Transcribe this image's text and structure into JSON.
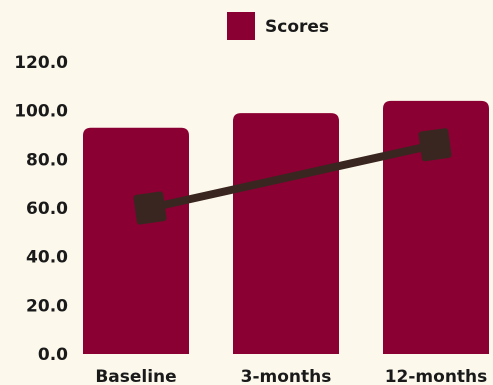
{
  "chart_data": {
    "type": "bar",
    "categories": [
      "Baseline",
      "3-months",
      "12-months"
    ],
    "series": [
      {
        "name": "Scores",
        "values": [
          93,
          99,
          104
        ]
      }
    ],
    "line_overlay": {
      "values": [
        60,
        72.5,
        86
      ]
    },
    "y_ticks": [
      "0.0",
      "20.0",
      "40.0",
      "60.0",
      "80.0",
      "100.0",
      "120.0"
    ],
    "ylim": [
      0,
      120
    ],
    "grid": false,
    "legend_position": "top-center",
    "colors": {
      "bar": "#8b0032",
      "line": "#3a2620",
      "marker": "#3a2620",
      "text": "#1a1a1a",
      "background": "#fcf9ec"
    }
  }
}
